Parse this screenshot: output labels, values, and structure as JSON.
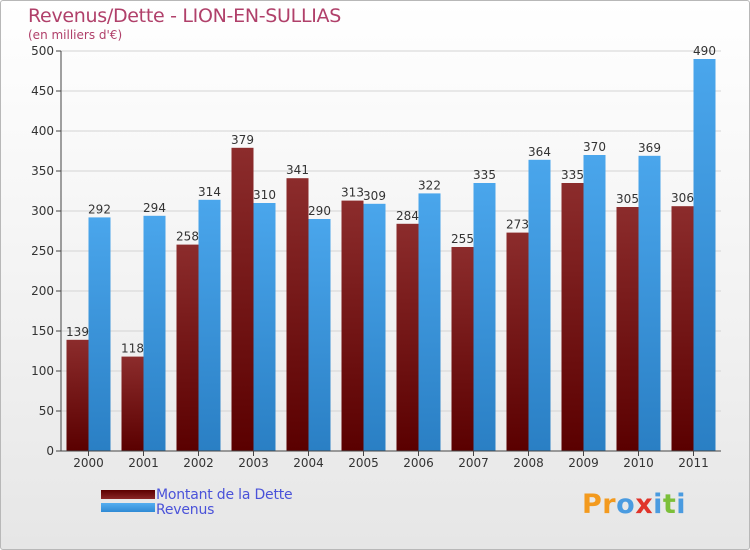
{
  "chart_data": {
    "type": "bar",
    "title": "Revenus/Dette - LION-EN-SULLIAS",
    "subtitle": "(en milliers d'€)",
    "categories": [
      "2000",
      "2001",
      "2002",
      "2003",
      "2004",
      "2005",
      "2006",
      "2007",
      "2008",
      "2009",
      "2010",
      "2011"
    ],
    "series": [
      {
        "name": "Montant de la Dette",
        "color": "#7a1a1a",
        "values": [
          139,
          118,
          258,
          379,
          341,
          313,
          284,
          255,
          273,
          335,
          305,
          306
        ]
      },
      {
        "name": "Revenus",
        "color": "#3f9be6",
        "values": [
          292,
          294,
          314,
          310,
          290,
          309,
          322,
          335,
          364,
          370,
          369,
          490
        ]
      }
    ],
    "ylim": [
      0,
      500
    ],
    "yticks": [
      0,
      50,
      100,
      150,
      200,
      250,
      300,
      350,
      400,
      450,
      500
    ],
    "grid": true,
    "legend_position": "bottom-left"
  },
  "logo": {
    "text": "Proxiti",
    "letters": [
      {
        "ch": "P",
        "color": "#f39a1e"
      },
      {
        "ch": "r",
        "color": "#f39a1e"
      },
      {
        "ch": "o",
        "color": "#4a9be0"
      },
      {
        "ch": "x",
        "color": "#e0342a"
      },
      {
        "ch": "i",
        "color": "#4a9be0"
      },
      {
        "ch": "t",
        "color": "#7cbf3a"
      },
      {
        "ch": "i",
        "color": "#4a9be0"
      }
    ]
  }
}
